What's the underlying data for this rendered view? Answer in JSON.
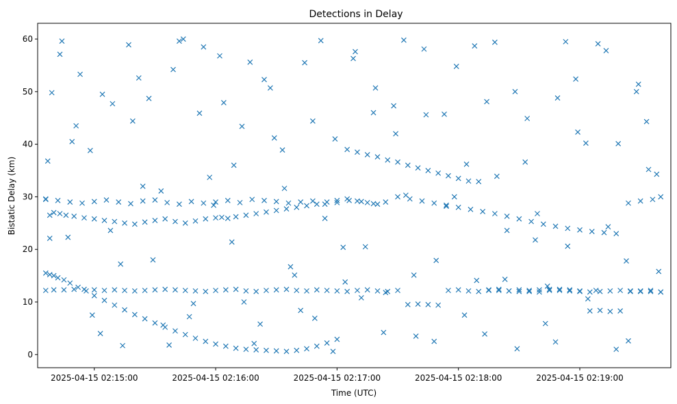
{
  "chart_data": {
    "type": "scatter",
    "title": "Detections in Delay",
    "xlabel": "Time (UTC)",
    "ylabel": "Bistatic Delay (km)",
    "x_tick_labels": [
      "2025-04-15 02:15:00",
      "2025-04-15 02:16:00",
      "2025-04-15 02:17:00",
      "2025-04-15 02:18:00",
      "2025-04-15 02:19:00"
    ],
    "y_tick_labels": [
      "0",
      "10",
      "20",
      "30",
      "40",
      "50",
      "60"
    ],
    "xlim": [
      "2025-04-15 02:14:32",
      "2025-04-15 02:19:45"
    ],
    "ylim": [
      -2.5,
      63
    ],
    "marker": "x",
    "grid": false,
    "colors": {
      "marker": "#1f77b4"
    },
    "series": [
      {
        "x": [
          "2025-04-15 02:14:36",
          "2025-04-15 02:14:38",
          "2025-04-15 02:14:40",
          "2025-04-15 02:14:42",
          "2025-04-15 02:14:45",
          "2025-04-15 02:14:48",
          "2025-04-15 02:14:52",
          "2025-04-15 02:14:56",
          "2025-04-15 02:15:00",
          "2025-04-15 02:15:05",
          "2025-04-15 02:15:10",
          "2025-04-15 02:15:15",
          "2025-04-15 02:15:20",
          "2025-04-15 02:15:25",
          "2025-04-15 02:15:30",
          "2025-04-15 02:15:35",
          "2025-04-15 02:15:40",
          "2025-04-15 02:15:45",
          "2025-04-15 02:15:50",
          "2025-04-15 02:15:55",
          "2025-04-15 02:16:00",
          "2025-04-15 02:16:05",
          "2025-04-15 02:16:10",
          "2025-04-15 02:16:15",
          "2025-04-15 02:16:20",
          "2025-04-15 02:16:25",
          "2025-04-15 02:16:30",
          "2025-04-15 02:16:35",
          "2025-04-15 02:16:40",
          "2025-04-15 02:16:45",
          "2025-04-15 02:16:50",
          "2025-04-15 02:16:55",
          "2025-04-15 02:17:00",
          "2025-04-15 02:17:05",
          "2025-04-15 02:17:10",
          "2025-04-15 02:17:15",
          "2025-04-15 02:17:20",
          "2025-04-15 02:17:25",
          "2025-04-15 02:17:30",
          "2025-04-15 02:17:35",
          "2025-04-15 02:17:40",
          "2025-04-15 02:17:45",
          "2025-04-15 02:17:50",
          "2025-04-15 02:17:55",
          "2025-04-15 02:18:00",
          "2025-04-15 02:18:05",
          "2025-04-15 02:18:10",
          "2025-04-15 02:18:15",
          "2025-04-15 02:18:20",
          "2025-04-15 02:18:25",
          "2025-04-15 02:18:30",
          "2025-04-15 02:18:35",
          "2025-04-15 02:18:40",
          "2025-04-15 02:18:45",
          "2025-04-15 02:18:50",
          "2025-04-15 02:18:55",
          "2025-04-15 02:19:00",
          "2025-04-15 02:19:05",
          "2025-04-15 02:19:10",
          "2025-04-15 02:19:15",
          "2025-04-15 02:19:20",
          "2025-04-15 02:19:25",
          "2025-04-15 02:19:30",
          "2025-04-15 02:19:35",
          "2025-04-15 02:19:40",
          "2025-04-15 02:14:36",
          "2025-04-15 02:14:40",
          "2025-04-15 02:14:45",
          "2025-04-15 02:14:50",
          "2025-04-15 02:14:55",
          "2025-04-15 02:15:00",
          "2025-04-15 02:15:05",
          "2025-04-15 02:15:10",
          "2025-04-15 02:15:15",
          "2025-04-15 02:15:20",
          "2025-04-15 02:15:25",
          "2025-04-15 02:15:30",
          "2025-04-15 02:15:35",
          "2025-04-15 02:15:40",
          "2025-04-15 02:15:45",
          "2025-04-15 02:15:50",
          "2025-04-15 02:15:55",
          "2025-04-15 02:16:00",
          "2025-04-15 02:16:05",
          "2025-04-15 02:16:10",
          "2025-04-15 02:16:15",
          "2025-04-15 02:16:20",
          "2025-04-15 02:16:25",
          "2025-04-15 02:16:30",
          "2025-04-15 02:16:35",
          "2025-04-15 02:16:40",
          "2025-04-15 02:16:45",
          "2025-04-15 02:16:50",
          "2025-04-15 02:16:55",
          "2025-04-15 02:17:00",
          "2025-04-15 02:17:05",
          "2025-04-15 02:17:10",
          "2025-04-15 02:17:15",
          "2025-04-15 02:17:20",
          "2025-04-15 02:17:25",
          "2025-04-15 02:17:30",
          "2025-04-15 02:17:35",
          "2025-04-15 02:17:40",
          "2025-04-15 02:17:45",
          "2025-04-15 02:17:50",
          "2025-04-15 02:17:55",
          "2025-04-15 02:18:00",
          "2025-04-15 02:18:05",
          "2025-04-15 02:18:10",
          "2025-04-15 02:18:15",
          "2025-04-15 02:18:20",
          "2025-04-15 02:18:25",
          "2025-04-15 02:18:30",
          "2025-04-15 02:18:35",
          "2025-04-15 02:18:40",
          "2025-04-15 02:18:45",
          "2025-04-15 02:18:50",
          "2025-04-15 02:18:55",
          "2025-04-15 02:19:00",
          "2025-04-15 02:19:05",
          "2025-04-15 02:19:10",
          "2025-04-15 02:19:15",
          "2025-04-15 02:19:20",
          "2025-04-15 02:19:25",
          "2025-04-15 02:19:30",
          "2025-04-15 02:19:35",
          "2025-04-15 02:19:40",
          "2025-04-15 02:14:36",
          "2025-04-15 02:14:38",
          "2025-04-15 02:14:40",
          "2025-04-15 02:14:43",
          "2025-04-15 02:14:46",
          "2025-04-15 02:14:50",
          "2025-04-15 02:14:55",
          "2025-04-15 02:15:00",
          "2025-04-15 02:15:05",
          "2025-04-15 02:15:10",
          "2025-04-15 02:15:15",
          "2025-04-15 02:15:20",
          "2025-04-15 02:15:25",
          "2025-04-15 02:15:30",
          "2025-04-15 02:15:35",
          "2025-04-15 02:15:40",
          "2025-04-15 02:15:45",
          "2025-04-15 02:15:50",
          "2025-04-15 02:15:55",
          "2025-04-15 02:16:00",
          "2025-04-15 02:16:03",
          "2025-04-15 02:16:06",
          "2025-04-15 02:16:10",
          "2025-04-15 02:16:15",
          "2025-04-15 02:16:20",
          "2025-04-15 02:16:25",
          "2025-04-15 02:16:30",
          "2025-04-15 02:16:35",
          "2025-04-15 02:16:40",
          "2025-04-15 02:16:45",
          "2025-04-15 02:16:50",
          "2025-04-15 02:16:55",
          "2025-04-15 02:17:00",
          "2025-04-15 02:17:05",
          "2025-04-15 02:17:10",
          "2025-04-15 02:17:15",
          "2025-04-15 02:17:20",
          "2025-04-15 02:14:36",
          "2025-04-15 02:14:42",
          "2025-04-15 02:14:48",
          "2025-04-15 02:14:54",
          "2025-04-15 02:15:00",
          "2025-04-15 02:15:06",
          "2025-04-15 02:15:12",
          "2025-04-15 02:15:18",
          "2025-04-15 02:15:24",
          "2025-04-15 02:15:30",
          "2025-04-15 02:15:36",
          "2025-04-15 02:15:42",
          "2025-04-15 02:15:48",
          "2025-04-15 02:15:54",
          "2025-04-15 02:16:00",
          "2025-04-15 02:16:06",
          "2025-04-15 02:16:12",
          "2025-04-15 02:16:18",
          "2025-04-15 02:16:24",
          "2025-04-15 02:16:30",
          "2025-04-15 02:16:36",
          "2025-04-15 02:16:42",
          "2025-04-15 02:16:48",
          "2025-04-15 02:16:54",
          "2025-04-15 02:17:00",
          "2025-04-15 02:17:06",
          "2025-04-15 02:17:12",
          "2025-04-15 02:17:18",
          "2025-04-15 02:17:24",
          "2025-04-15 02:17:30",
          "2025-04-15 02:17:36",
          "2025-04-15 02:17:42",
          "2025-04-15 02:17:48",
          "2025-04-15 02:17:54",
          "2025-04-15 02:18:00",
          "2025-04-15 02:18:06",
          "2025-04-15 02:18:12",
          "2025-04-15 02:18:18",
          "2025-04-15 02:18:24",
          "2025-04-15 02:18:30",
          "2025-04-15 02:18:36",
          "2025-04-15 02:18:42",
          "2025-04-15 02:18:48",
          "2025-04-15 02:18:54",
          "2025-04-15 02:19:00",
          "2025-04-15 02:19:06",
          "2025-04-15 02:19:12",
          "2025-04-15 02:19:18",
          "2025-04-15 02:19:24",
          "2025-04-15 02:19:30",
          "2025-04-15 02:19:36",
          "2025-04-15 02:19:40",
          "2025-04-15 02:14:37",
          "2025-04-15 02:14:39",
          "2025-04-15 02:14:44",
          "2025-04-15 02:14:47",
          "2025-04-15 02:14:51",
          "2025-04-15 02:14:58",
          "2025-04-15 02:15:03",
          "2025-04-15 02:15:08",
          "2025-04-15 02:15:13",
          "2025-04-15 02:15:17",
          "2025-04-15 02:15:22",
          "2025-04-15 02:15:27",
          "2025-04-15 02:15:33",
          "2025-04-15 02:15:37",
          "2025-04-15 02:15:42",
          "2025-04-15 02:15:47",
          "2025-04-15 02:15:52",
          "2025-04-15 02:15:57",
          "2025-04-15 02:16:02",
          "2025-04-15 02:16:08",
          "2025-04-15 02:16:13",
          "2025-04-15 02:16:17",
          "2025-04-15 02:16:22",
          "2025-04-15 02:16:27",
          "2025-04-15 02:16:33",
          "2025-04-15 02:16:37",
          "2025-04-15 02:16:42",
          "2025-04-15 02:16:48",
          "2025-04-15 02:16:52",
          "2025-04-15 02:16:58",
          "2025-04-15 02:17:03",
          "2025-04-15 02:17:08",
          "2025-04-15 02:17:12",
          "2025-04-15 02:17:18",
          "2025-04-15 02:17:23",
          "2025-04-15 02:17:28",
          "2025-04-15 02:17:33",
          "2025-04-15 02:17:38",
          "2025-04-15 02:17:43",
          "2025-04-15 02:17:48",
          "2025-04-15 02:17:53",
          "2025-04-15 02:17:58",
          "2025-04-15 02:18:03",
          "2025-04-15 02:18:08",
          "2025-04-15 02:18:13",
          "2025-04-15 02:18:18",
          "2025-04-15 02:18:23",
          "2025-04-15 02:18:28",
          "2025-04-15 02:18:33",
          "2025-04-15 02:18:38",
          "2025-04-15 02:18:43",
          "2025-04-15 02:18:48",
          "2025-04-15 02:18:53",
          "2025-04-15 02:18:58",
          "2025-04-15 02:19:03",
          "2025-04-15 02:19:08",
          "2025-04-15 02:19:13",
          "2025-04-15 02:19:18",
          "2025-04-15 02:19:23",
          "2025-04-15 02:19:28",
          "2025-04-15 02:19:33",
          "2025-04-15 02:19:38",
          "2025-04-15 02:14:38",
          "2025-04-15 02:14:43",
          "2025-04-15 02:14:49",
          "2025-04-15 02:14:53",
          "2025-04-15 02:14:59",
          "2025-04-15 02:15:04",
          "2025-04-15 02:15:09",
          "2025-04-15 02:15:14",
          "2025-04-15 02:15:19",
          "2025-04-15 02:15:24",
          "2025-04-15 02:15:29",
          "2025-04-15 02:15:34",
          "2025-04-15 02:15:39",
          "2025-04-15 02:15:44",
          "2025-04-15 02:15:49",
          "2025-04-15 02:15:54",
          "2025-04-15 02:15:59",
          "2025-04-15 02:16:04",
          "2025-04-15 02:16:09",
          "2025-04-15 02:16:14",
          "2025-04-15 02:16:19",
          "2025-04-15 02:16:24",
          "2025-04-15 02:16:29",
          "2025-04-15 02:16:34",
          "2025-04-15 02:16:39",
          "2025-04-15 02:16:44",
          "2025-04-15 02:16:49",
          "2025-04-15 02:16:54",
          "2025-04-15 02:16:59",
          "2025-04-15 02:17:04",
          "2025-04-15 02:17:09",
          "2025-04-15 02:17:14",
          "2025-04-15 02:17:19",
          "2025-04-15 02:17:24",
          "2025-04-15 02:17:29",
          "2025-04-15 02:17:34",
          "2025-04-15 02:17:39",
          "2025-04-15 02:17:44",
          "2025-04-15 02:17:49",
          "2025-04-15 02:17:54",
          "2025-04-15 02:17:59",
          "2025-04-15 02:18:04",
          "2025-04-15 02:18:09",
          "2025-04-15 02:18:14",
          "2025-04-15 02:18:19",
          "2025-04-15 02:18:24",
          "2025-04-15 02:18:29",
          "2025-04-15 02:18:34",
          "2025-04-15 02:18:39",
          "2025-04-15 02:18:44",
          "2025-04-15 02:18:49",
          "2025-04-15 02:18:54",
          "2025-04-15 02:18:59",
          "2025-04-15 02:19:04",
          "2025-04-15 02:19:09",
          "2025-04-15 02:19:14",
          "2025-04-15 02:19:19",
          "2025-04-15 02:19:24",
          "2025-04-15 02:19:29",
          "2025-04-15 02:19:34",
          "2025-04-15 02:19:39"
        ],
        "y": [
          15.5,
          15.2,
          15,
          14.6,
          14.2,
          13.6,
          12.8,
          12.1,
          11.2,
          10.3,
          9.4,
          8.5,
          7.6,
          6.8,
          6.0,
          5.2,
          4.5,
          3.8,
          3.1,
          2.5,
          2.0,
          1.6,
          1.2,
          1.0,
          0.9,
          0.8,
          0.7,
          0.6,
          0.8,
          1.1,
          1.6,
          2.2,
          2.9,
          39.0,
          38.5,
          38.0,
          37.6,
          37.0,
          36.6,
          36.0,
          35.5,
          35.0,
          34.5,
          34.0,
          33.5,
          33.0,
          32.9,
          12.3,
          12.2,
          12.1,
          12.0,
          12.2,
          12.3,
          12.4,
          12.2,
          12.1,
          12.0,
          11.9,
          12.0,
          12.1,
          12.2,
          12.0,
          12.1,
          12.0,
          11.9,
          12.2,
          12.3,
          12.3,
          12.4,
          12.4,
          12.3,
          12.2,
          12.3,
          12.2,
          12.1,
          12.2,
          12.3,
          12.4,
          12.3,
          12.2,
          12.1,
          12.0,
          12.2,
          12.3,
          12.4,
          12.1,
          12.0,
          12.2,
          12.3,
          12.4,
          12.2,
          12.1,
          12.3,
          12.2,
          12.1,
          12.0,
          12.2,
          12.3,
          12.1,
          12.0,
          12.2,
          9.5,
          9.6,
          9.5,
          9.4,
          12.2,
          12.3,
          12.1,
          12.0,
          12.2,
          12.4,
          12.1,
          12.3,
          12.0,
          11.9,
          12.2,
          12.4,
          12.3,
          12.1,
          8.3,
          8.4,
          8.2,
          8.3,
          12.1,
          12.0,
          12.2,
          11.9,
          29.6,
          26.5,
          27.0,
          26.8,
          26.5,
          26.3,
          26.0,
          25.8,
          25.5,
          25.3,
          25.0,
          24.8,
          25.2,
          25.5,
          25.8,
          25.3,
          25.0,
          25.4,
          25.8,
          26.0,
          26.1,
          25.9,
          26.2,
          26.5,
          26.8,
          27.1,
          27.4,
          27.7,
          28.0,
          28.3,
          28.6,
          29.0,
          29.3,
          29.6,
          29.2,
          28.9,
          28.6,
          29.5,
          29.3,
          29.0,
          28.8,
          29.1,
          29.4,
          29.0,
          28.7,
          29.2,
          29.4,
          28.9,
          28.6,
          29.1,
          28.8,
          29.0,
          29.3,
          28.9,
          29.5,
          29.3,
          29.1,
          28.8,
          29.0,
          29.2,
          28.6,
          28.9,
          29.3,
          29.1,
          28.7,
          29.0,
          30.0,
          29.6,
          29.2,
          28.8,
          28.4,
          28.0,
          27.6,
          27.2,
          26.8,
          26.3,
          25.8,
          25.3,
          24.8,
          24.4,
          24.0,
          23.7,
          23.4,
          23.2,
          23.0,
          28.8,
          29.2,
          29.5,
          30.0,
          36.8,
          49.8,
          59.6,
          22.3,
          43.5,
          38.8,
          4.0,
          23.6,
          17.2,
          58.9,
          52.6,
          48.7,
          31.1,
          1.8,
          59.6,
          7.2,
          45.9,
          33.7,
          56.8,
          21.4,
          43.4,
          55.6,
          5.8,
          50.7,
          38.9,
          16.7,
          8.4,
          44.4,
          59.7,
          0.6,
          20.4,
          56.3,
          10.8,
          46.0,
          4.2,
          47.3,
          59.8,
          15.1,
          58.1,
          2.5,
          45.7,
          30.0,
          7.5,
          58.7,
          3.9,
          59.4,
          14.3,
          50.0,
          36.6,
          21.8,
          5.9,
          2.4,
          59.5,
          52.4,
          40.2,
          12.2,
          57.8,
          1.0,
          17.8,
          50.0,
          44.3,
          34.3,
          22.1,
          57.1,
          40.5,
          53.3,
          7.5,
          49.5,
          47.7,
          1.7,
          44.4,
          32.0,
          18.0,
          5.6,
          54.2,
          60.0,
          9.7,
          58.5,
          28.4,
          47.9,
          36.0,
          10.0,
          2.1,
          52.3,
          41.2,
          31.6,
          15.1,
          55.5,
          6.9,
          25.9,
          41.0,
          13.8,
          57.6,
          20.5,
          50.7,
          11.8,
          42.0,
          30.3,
          3.5,
          45.6,
          17.9,
          28.2,
          54.8,
          36.2,
          14.1,
          48.1,
          33.9,
          23.6,
          1.1,
          44.9,
          26.8,
          13.0,
          48.8,
          20.6,
          42.3,
          10.6,
          59.1,
          24.3,
          40.1,
          2.6,
          51.4,
          35.2,
          15.8
        ]
      }
    ]
  }
}
